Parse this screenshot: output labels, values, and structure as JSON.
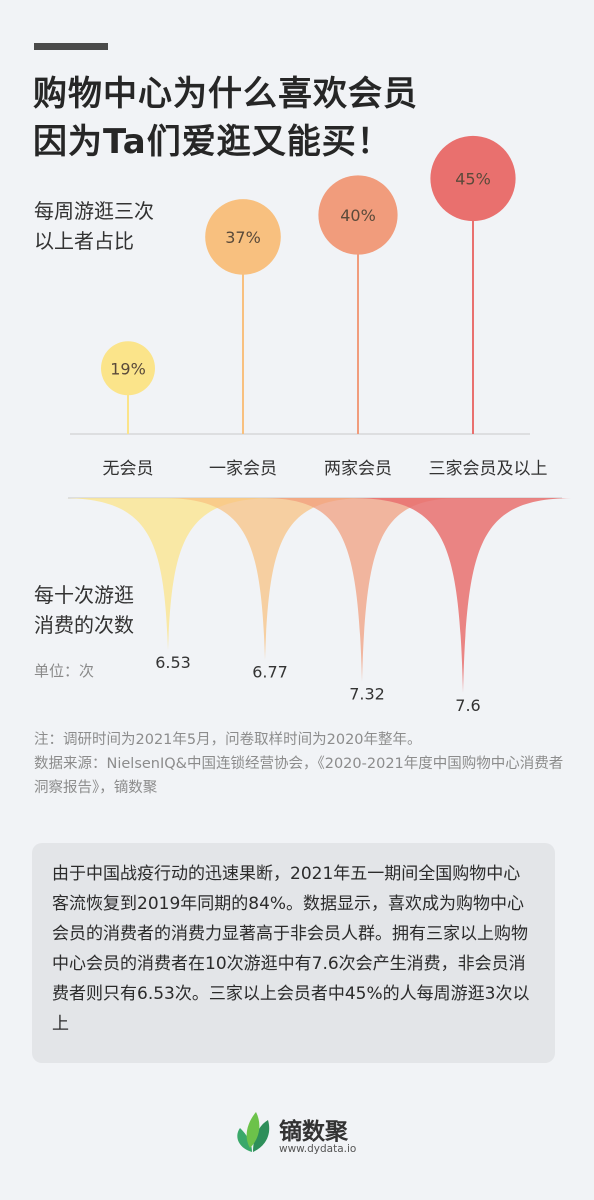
{
  "title": {
    "line1": "购物中心为什么喜欢会员",
    "line2": "因为Ta们爱逛又能买！"
  },
  "colors": {
    "yellow": "#fbe48a",
    "light_orange": "#f8c07f",
    "orange": "#f19c7c",
    "red": "#e9706e"
  },
  "chart_data": [
    {
      "type": "bubble-stem",
      "title": "每周游逛三次以上者占比",
      "categories": [
        "无会员",
        "一家会员",
        "两家会员",
        "三家会员及以上"
      ],
      "values": [
        19,
        37,
        40,
        45
      ],
      "value_labels": [
        "19%",
        "37%",
        "40%",
        "45%"
      ],
      "unit": "%"
    },
    {
      "type": "drop",
      "title": "每十次游逛消费的次数",
      "unit_label": "单位：次",
      "categories": [
        "无会员",
        "一家会员",
        "两家会员",
        "三家会员及以上"
      ],
      "values": [
        6.53,
        6.77,
        7.32,
        7.6
      ],
      "value_labels": [
        "6.53",
        "6.77",
        "7.32",
        "7.6"
      ]
    }
  ],
  "chart1_label": {
    "line1": "每周游逛三次",
    "line2": "以上者占比"
  },
  "chart2_label": {
    "line1": "每十次游逛",
    "line2": "消费的次数"
  },
  "notes": {
    "line1": "注：调研时间为2021年5月，问卷取样时间为2020年整年。",
    "line2": "数据来源：NielsenIQ&中国连锁经营协会，《2020-2021年度中国购物中心消费者洞察报告》，镝数聚"
  },
  "summary": "由于中国战疫行动的迅速果断，2021年五一期间全国购物中心客流恢复到2019年同期的84%。数据显示，喜欢成为购物中心会员的消费者的消费力显著高于非会员人群。拥有三家以上购物中心会员的消费者在10次游逛中有7.6次会产生消费，非会员消费者则只有6.53次。三家以上会员者中45%的人每周游逛3次以上",
  "footer": {
    "brand": "镝数聚",
    "domain": "www.dydata.io"
  }
}
